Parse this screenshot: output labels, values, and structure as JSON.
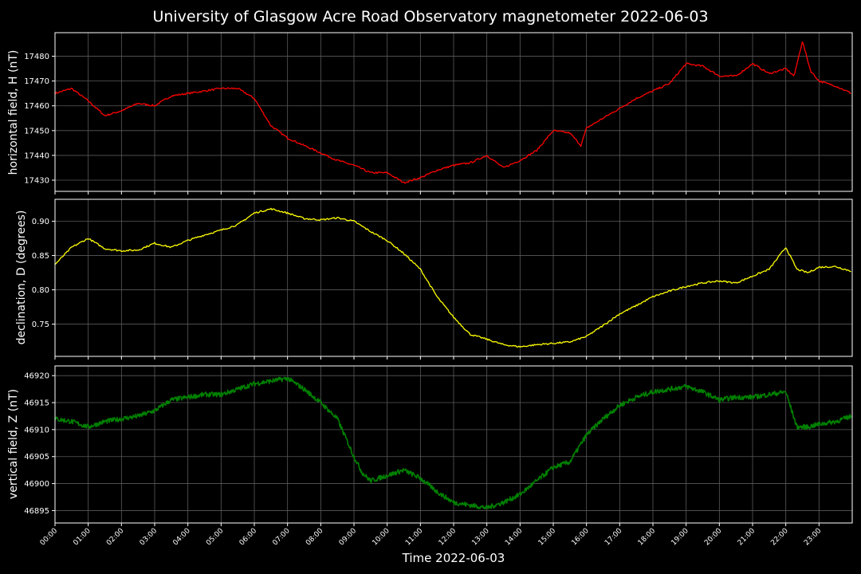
{
  "title": "University of Glasgow Acre Road Observatory magnetometer 2022-06-03",
  "xlabel": "Time 2022-06-03",
  "colors": {
    "background": "#000000",
    "grid": "#5a5a5a",
    "axes": "#ffffff",
    "H": "#ff0000",
    "D": "#ffff00",
    "Z": "#008000"
  },
  "chart_data": [
    {
      "type": "line",
      "ylabel": "horizontal field, H (nT)",
      "series": [
        {
          "color": "#ff0000",
          "x": [
            "00:00",
            "00:30",
            "01:00",
            "01:30",
            "02:00",
            "02:30",
            "03:00",
            "03:30",
            "04:00",
            "04:30",
            "05:00",
            "05:30",
            "06:00",
            "06:30",
            "07:00",
            "07:30",
            "08:00",
            "08:30",
            "09:00",
            "09:30",
            "10:00",
            "10:30",
            "11:00",
            "11:30",
            "12:00",
            "12:30",
            "13:00",
            "13:30",
            "14:00",
            "14:30",
            "15:00",
            "15:30",
            "15:50",
            "16:00",
            "16:30",
            "17:00",
            "17:30",
            "18:00",
            "18:30",
            "19:00",
            "19:30",
            "20:00",
            "20:30",
            "21:00",
            "21:30",
            "22:00",
            "22:15",
            "22:30",
            "22:45",
            "23:00",
            "23:30",
            "23:59"
          ],
          "values": [
            17465,
            17467,
            17462,
            17456,
            17458,
            17461,
            17460,
            17464,
            17465,
            17466,
            17467,
            17467,
            17463,
            17452,
            17447,
            17444,
            17441,
            17438,
            17436,
            17433,
            17433,
            17429,
            17431,
            17434,
            17436,
            17437,
            17440,
            17435,
            17438,
            17442,
            17450,
            17449,
            17444,
            17451,
            17455,
            17459,
            17463,
            17466,
            17469,
            17477,
            17476,
            17472,
            17472,
            17477,
            17473,
            17475,
            17472,
            17486,
            17474,
            17470,
            17468,
            17465
          ]
        }
      ],
      "yticks": [
        17430,
        17440,
        17450,
        17460,
        17470,
        17480
      ],
      "ylim": [
        17425.5,
        17489.5
      ]
    },
    {
      "type": "line",
      "ylabel": "declination, D (degrees)",
      "series": [
        {
          "color": "#ffff00",
          "x": [
            "00:00",
            "00:30",
            "01:00",
            "01:30",
            "02:00",
            "02:30",
            "03:00",
            "03:30",
            "04:00",
            "04:30",
            "05:00",
            "05:30",
            "06:00",
            "06:30",
            "07:00",
            "07:30",
            "08:00",
            "08:30",
            "09:00",
            "09:30",
            "10:00",
            "10:30",
            "11:00",
            "11:30",
            "12:00",
            "12:30",
            "13:00",
            "13:30",
            "14:00",
            "14:30",
            "15:00",
            "15:30",
            "16:00",
            "16:30",
            "17:00",
            "17:30",
            "18:00",
            "18:30",
            "19:00",
            "19:30",
            "20:00",
            "20:30",
            "21:00",
            "21:30",
            "22:00",
            "22:20",
            "22:40",
            "23:00",
            "23:30",
            "23:59"
          ],
          "values": [
            0.837,
            0.862,
            0.875,
            0.86,
            0.857,
            0.858,
            0.868,
            0.862,
            0.872,
            0.88,
            0.887,
            0.895,
            0.912,
            0.918,
            0.912,
            0.904,
            0.902,
            0.905,
            0.9,
            0.885,
            0.872,
            0.853,
            0.83,
            0.79,
            0.76,
            0.735,
            0.728,
            0.72,
            0.717,
            0.72,
            0.722,
            0.724,
            0.732,
            0.748,
            0.765,
            0.777,
            0.79,
            0.798,
            0.805,
            0.81,
            0.813,
            0.81,
            0.82,
            0.83,
            0.862,
            0.83,
            0.825,
            0.833,
            0.834,
            0.827
          ]
        }
      ],
      "yticks": [
        0.75,
        0.8,
        0.85,
        0.9
      ],
      "ylim": [
        0.703,
        0.932
      ]
    },
    {
      "type": "line",
      "ylabel": "vertical field, Z (nT)",
      "series": [
        {
          "color": "#008000",
          "x": [
            "00:00",
            "00:30",
            "01:00",
            "01:30",
            "02:00",
            "02:30",
            "03:00",
            "03:30",
            "04:00",
            "04:30",
            "05:00",
            "05:30",
            "06:00",
            "06:30",
            "07:00",
            "07:30",
            "08:00",
            "08:30",
            "09:00",
            "09:15",
            "09:30",
            "10:00",
            "10:30",
            "11:00",
            "11:30",
            "12:00",
            "12:30",
            "13:00",
            "13:30",
            "14:00",
            "14:30",
            "15:00",
            "15:30",
            "16:00",
            "16:30",
            "17:00",
            "17:30",
            "18:00",
            "18:30",
            "19:00",
            "19:30",
            "20:00",
            "20:30",
            "21:00",
            "21:30",
            "22:00",
            "22:20",
            "22:40",
            "23:00",
            "23:30",
            "23:59"
          ],
          "values": [
            46912,
            46911.5,
            46910.5,
            46911.5,
            46912,
            46912.5,
            46913.5,
            46915.5,
            46916,
            46916.5,
            46916.5,
            46917.5,
            46918.5,
            46919,
            46919.5,
            46917.5,
            46915,
            46912,
            46905,
            46902,
            46900.5,
            46901.5,
            46902.5,
            46901,
            46898.5,
            46896.5,
            46896,
            46895.5,
            46896.5,
            46898,
            46900.5,
            46903,
            46904,
            46909,
            46912,
            46914.5,
            46916,
            46917,
            46917.5,
            46918,
            46917,
            46915.5,
            46916,
            46916,
            46916.5,
            46917,
            46910.5,
            46910.5,
            46911,
            46911.5,
            46912.5
          ]
        }
      ],
      "yticks": [
        46895,
        46900,
        46905,
        46910,
        46915,
        46920
      ],
      "ylim": [
        46892.7,
        46921.8
      ]
    }
  ],
  "xticks": [
    "00:00",
    "01:00",
    "02:00",
    "03:00",
    "04:00",
    "05:00",
    "06:00",
    "07:00",
    "08:00",
    "09:00",
    "10:00",
    "11:00",
    "12:00",
    "13:00",
    "14:00",
    "15:00",
    "16:00",
    "17:00",
    "18:00",
    "19:00",
    "20:00",
    "21:00",
    "22:00",
    "23:00"
  ],
  "xlim": [
    "00:00",
    "24:00"
  ]
}
